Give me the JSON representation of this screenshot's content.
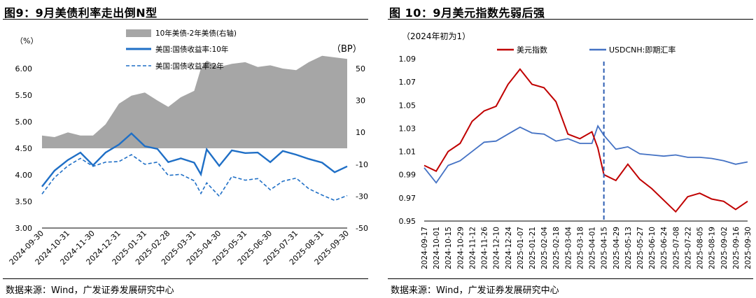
{
  "left": {
    "title": "图9：9月美债利率走出倒N型",
    "source": "数据来源：Wind，广发证券发展研究中心",
    "chart_data": {
      "type": "line",
      "left_unit": "（%）",
      "right_unit": "（BP）",
      "y_ticks": [
        "6.00",
        "5.50",
        "5.00",
        "4.50",
        "4.00",
        "3.50",
        "3.00"
      ],
      "y_range": [
        3.0,
        6.0
      ],
      "y2_ticks": [
        "50",
        "30",
        "10",
        "-10",
        "-30",
        "-50"
      ],
      "y2_range": [
        -50,
        50
      ],
      "x_ticks": [
        "2024-09-30",
        "2024-10-31",
        "2024-11-30",
        "2024-12-31",
        "2025-01-31",
        "2025-02-28",
        "2025-03-31",
        "2025-04-30",
        "2025-05-31",
        "2025-06-30",
        "2025-07-31",
        "2025-08-31",
        "2025-09-30"
      ],
      "x": [
        "2024-09-30",
        "2024-10-15",
        "2024-10-31",
        "2024-11-15",
        "2024-11-30",
        "2024-12-15",
        "2024-12-31",
        "2025-01-15",
        "2025-01-31",
        "2025-02-15",
        "2025-02-28",
        "2025-03-15",
        "2025-03-31",
        "2025-04-08",
        "2025-04-15",
        "2025-04-30",
        "2025-05-15",
        "2025-05-31",
        "2025-06-15",
        "2025-06-30",
        "2025-07-15",
        "2025-07-31",
        "2025-08-15",
        "2025-08-31",
        "2025-09-15",
        "2025-09-30"
      ],
      "series": [
        {
          "name": "10年美债-2年美债(右轴)",
          "style": "area",
          "axis": "right",
          "color": "#a6a6a6",
          "values": [
            8,
            7,
            10,
            8,
            8,
            15,
            28,
            33,
            35,
            30,
            26,
            32,
            36,
            50,
            55,
            51,
            53,
            54,
            51,
            52,
            50,
            49,
            54,
            58,
            57,
            56
          ]
        },
        {
          "name": "美国:国债收益率:10年",
          "style": "solid",
          "axis": "left",
          "color": "#1f6fc6",
          "values": [
            3.78,
            4.08,
            4.28,
            4.42,
            4.18,
            4.42,
            4.57,
            4.78,
            4.54,
            4.49,
            4.24,
            4.31,
            4.23,
            4.01,
            4.48,
            4.17,
            4.46,
            4.41,
            4.42,
            4.24,
            4.45,
            4.38,
            4.3,
            4.23,
            4.05,
            4.16
          ]
        },
        {
          "name": "美国:国债收益率:2年",
          "style": "dashed",
          "axis": "left",
          "color": "#1f6fc6",
          "values": [
            3.64,
            3.95,
            4.17,
            4.31,
            4.16,
            4.24,
            4.25,
            4.38,
            4.2,
            4.24,
            3.99,
            4.01,
            3.89,
            3.65,
            3.85,
            3.6,
            3.97,
            3.9,
            3.93,
            3.72,
            3.88,
            3.94,
            3.74,
            3.62,
            3.52,
            3.61
          ]
        }
      ],
      "legend": "top-center"
    }
  },
  "right": {
    "title": "图 10：9月美元指数先弱后强",
    "source": "数据来源：Wind，广发证券发展研究中心",
    "chart_data": {
      "type": "line",
      "note": "（2024年初为1）",
      "y_ticks": [
        "1.09",
        "1.07",
        "1.05",
        "1.03",
        "1.01",
        "0.99",
        "0.97",
        "0.95"
      ],
      "y_range": [
        0.95,
        1.09
      ],
      "x_ticks": [
        "2024-09-17",
        "2024-10-01",
        "2024-10-15",
        "2024-10-29",
        "2024-11-12",
        "2024-11-26",
        "2024-12-10",
        "2024-12-24",
        "2025-01-07",
        "2025-01-21",
        "2025-02-04",
        "2025-02-18",
        "2025-03-04",
        "2025-03-18",
        "2025-04-01",
        "2025-04-15",
        "2025-04-29",
        "2025-05-13",
        "2025-05-27",
        "2025-06-10",
        "2025-06-24",
        "2025-07-08",
        "2025-07-22",
        "2025-08-05",
        "2025-08-19",
        "2025-09-02",
        "2025-09-16",
        "2025-09-30"
      ],
      "x": [
        "2024-09-17",
        "2024-10-01",
        "2024-10-15",
        "2024-10-29",
        "2024-11-12",
        "2024-11-26",
        "2024-12-10",
        "2024-12-24",
        "2025-01-07",
        "2025-01-21",
        "2025-02-04",
        "2025-02-18",
        "2025-03-04",
        "2025-03-18",
        "2025-04-01",
        "2025-04-08",
        "2025-04-15",
        "2025-04-29",
        "2025-05-13",
        "2025-05-27",
        "2025-06-10",
        "2025-06-24",
        "2025-07-08",
        "2025-07-22",
        "2025-08-05",
        "2025-08-19",
        "2025-09-02",
        "2025-09-16",
        "2025-09-30"
      ],
      "series": [
        {
          "name": "美元指数",
          "style": "solid",
          "color": "#c00000",
          "values": [
            0.998,
            0.993,
            1.01,
            1.017,
            1.036,
            1.045,
            1.049,
            1.068,
            1.081,
            1.068,
            1.065,
            1.053,
            1.025,
            1.021,
            1.027,
            1.013,
            0.99,
            0.985,
            0.999,
            0.986,
            0.978,
            0.968,
            0.958,
            0.971,
            0.974,
            0.969,
            0.967,
            0.96,
            0.967
          ]
        },
        {
          "name": "USDCNH:即期汇率",
          "style": "solid",
          "color": "#4472c4",
          "values": [
            0.996,
            0.983,
            0.998,
            1.002,
            1.01,
            1.018,
            1.019,
            1.025,
            1.031,
            1.026,
            1.025,
            1.019,
            1.021,
            1.017,
            1.017,
            1.032,
            1.024,
            1.012,
            1.014,
            1.008,
            1.007,
            1.006,
            1.007,
            1.005,
            1.005,
            1.004,
            1.002,
            0.999,
            1.001
          ]
        }
      ],
      "marker_line": {
        "x": "2025-04-15",
        "style": "dashed",
        "color": "#2f5fb3"
      },
      "legend": "top"
    }
  }
}
